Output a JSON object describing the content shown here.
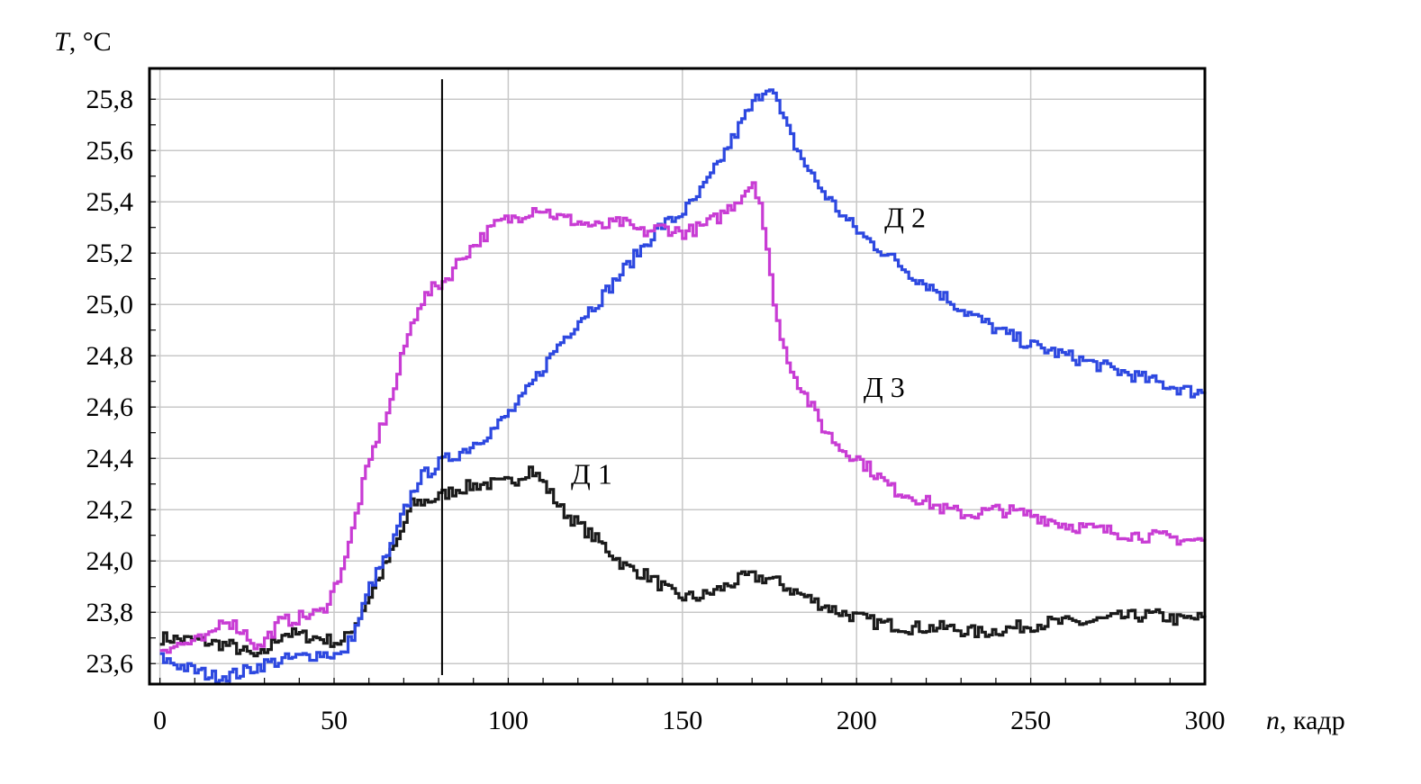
{
  "chart_data": {
    "type": "line",
    "title": "",
    "ylabel_symbol": "T",
    "ylabel_unit": ", °C",
    "xlabel_symbol": "n",
    "xlabel_unit": ", кадр",
    "xlim": [
      -3,
      300
    ],
    "ylim": [
      23.52,
      25.92
    ],
    "x_ticks": [
      0,
      50,
      100,
      150,
      200,
      250,
      300
    ],
    "x_tick_labels": [
      "0",
      "50",
      "100",
      "150",
      "200",
      "250",
      "300"
    ],
    "y_ticks": [
      23.6,
      23.8,
      24.0,
      24.2,
      24.4,
      24.6,
      24.8,
      25.0,
      25.2,
      25.4,
      25.6,
      25.8
    ],
    "y_tick_labels": [
      "23,6",
      "23,8",
      "24,0",
      "24,2",
      "24,4",
      "24,6",
      "24,8",
      "25,0",
      "25,2",
      "25,4",
      "25,6",
      "25,8"
    ],
    "grid": true,
    "marker_line_x": 81,
    "series": [
      {
        "name": "Д 1",
        "color": "#1a1a1a",
        "label_at": [
          118,
          24.3
        ],
        "points": [
          [
            0,
            23.7
          ],
          [
            10,
            23.69
          ],
          [
            20,
            23.67
          ],
          [
            28,
            23.62
          ],
          [
            35,
            23.72
          ],
          [
            45,
            23.7
          ],
          [
            52,
            23.68
          ],
          [
            56,
            23.76
          ],
          [
            62,
            23.92
          ],
          [
            68,
            24.08
          ],
          [
            72,
            24.22
          ],
          [
            78,
            24.24
          ],
          [
            85,
            24.28
          ],
          [
            92,
            24.3
          ],
          [
            98,
            24.3
          ],
          [
            102,
            24.32
          ],
          [
            106,
            24.36
          ],
          [
            110,
            24.3
          ],
          [
            115,
            24.2
          ],
          [
            120,
            24.14
          ],
          [
            127,
            24.06
          ],
          [
            133,
            23.98
          ],
          [
            140,
            23.94
          ],
          [
            148,
            23.86
          ],
          [
            155,
            23.86
          ],
          [
            162,
            23.9
          ],
          [
            168,
            23.94
          ],
          [
            175,
            23.93
          ],
          [
            182,
            23.88
          ],
          [
            188,
            23.84
          ],
          [
            195,
            23.8
          ],
          [
            205,
            23.76
          ],
          [
            215,
            23.74
          ],
          [
            225,
            23.74
          ],
          [
            235,
            23.72
          ],
          [
            245,
            23.74
          ],
          [
            255,
            23.76
          ],
          [
            265,
            23.76
          ],
          [
            275,
            23.78
          ],
          [
            285,
            23.79
          ],
          [
            292,
            23.77
          ],
          [
            300,
            23.78
          ]
        ]
      },
      {
        "name": "Д 2",
        "color": "#2d48e0",
        "label_at": [
          208,
          25.3
        ],
        "points": [
          [
            0,
            23.62
          ],
          [
            8,
            23.58
          ],
          [
            15,
            23.55
          ],
          [
            22,
            23.56
          ],
          [
            30,
            23.6
          ],
          [
            38,
            23.62
          ],
          [
            46,
            23.64
          ],
          [
            52,
            23.63
          ],
          [
            56,
            23.74
          ],
          [
            60,
            23.9
          ],
          [
            66,
            24.05
          ],
          [
            70,
            24.2
          ],
          [
            74,
            24.32
          ],
          [
            80,
            24.38
          ],
          [
            88,
            24.44
          ],
          [
            96,
            24.52
          ],
          [
            103,
            24.62
          ],
          [
            108,
            24.72
          ],
          [
            114,
            24.84
          ],
          [
            120,
            24.94
          ],
          [
            126,
            25.02
          ],
          [
            132,
            25.12
          ],
          [
            138,
            25.22
          ],
          [
            143,
            25.3
          ],
          [
            148,
            25.34
          ],
          [
            153,
            25.4
          ],
          [
            158,
            25.5
          ],
          [
            163,
            25.62
          ],
          [
            168,
            25.74
          ],
          [
            172,
            25.82
          ],
          [
            175,
            25.86
          ],
          [
            178,
            25.74
          ],
          [
            182,
            25.62
          ],
          [
            186,
            25.52
          ],
          [
            190,
            25.44
          ],
          [
            196,
            25.34
          ],
          [
            202,
            25.26
          ],
          [
            208,
            25.2
          ],
          [
            215,
            25.12
          ],
          [
            222,
            25.06
          ],
          [
            230,
            24.98
          ],
          [
            240,
            24.9
          ],
          [
            250,
            24.84
          ],
          [
            260,
            24.8
          ],
          [
            270,
            24.76
          ],
          [
            280,
            24.72
          ],
          [
            290,
            24.68
          ],
          [
            296,
            24.66
          ],
          [
            300,
            24.66
          ]
        ]
      },
      {
        "name": "Д 3",
        "color": "#c83cd4",
        "label_at": [
          202,
          24.64
        ],
        "points": [
          [
            0,
            23.66
          ],
          [
            8,
            23.68
          ],
          [
            14,
            23.7
          ],
          [
            18,
            23.78
          ],
          [
            24,
            23.72
          ],
          [
            28,
            23.66
          ],
          [
            34,
            23.76
          ],
          [
            40,
            23.78
          ],
          [
            46,
            23.8
          ],
          [
            50,
            23.9
          ],
          [
            54,
            24.06
          ],
          [
            58,
            24.3
          ],
          [
            62,
            24.48
          ],
          [
            66,
            24.62
          ],
          [
            70,
            24.84
          ],
          [
            74,
            25.0
          ],
          [
            78,
            25.06
          ],
          [
            82,
            25.1
          ],
          [
            86,
            25.18
          ],
          [
            92,
            25.26
          ],
          [
            97,
            25.32
          ],
          [
            102,
            25.34
          ],
          [
            108,
            25.38
          ],
          [
            114,
            25.34
          ],
          [
            120,
            25.32
          ],
          [
            126,
            25.3
          ],
          [
            132,
            25.32
          ],
          [
            138,
            25.28
          ],
          [
            144,
            25.3
          ],
          [
            150,
            25.28
          ],
          [
            155,
            25.3
          ],
          [
            160,
            25.34
          ],
          [
            165,
            25.4
          ],
          [
            170,
            25.48
          ],
          [
            172,
            25.4
          ],
          [
            175,
            25.1
          ],
          [
            178,
            24.86
          ],
          [
            182,
            24.72
          ],
          [
            186,
            24.62
          ],
          [
            190,
            24.52
          ],
          [
            195,
            24.44
          ],
          [
            200,
            24.4
          ],
          [
            205,
            24.34
          ],
          [
            210,
            24.28
          ],
          [
            218,
            24.24
          ],
          [
            225,
            24.2
          ],
          [
            232,
            24.18
          ],
          [
            240,
            24.2
          ],
          [
            250,
            24.18
          ],
          [
            260,
            24.14
          ],
          [
            270,
            24.12
          ],
          [
            280,
            24.1
          ],
          [
            290,
            24.09
          ],
          [
            296,
            24.08
          ],
          [
            300,
            24.08
          ]
        ]
      }
    ]
  }
}
